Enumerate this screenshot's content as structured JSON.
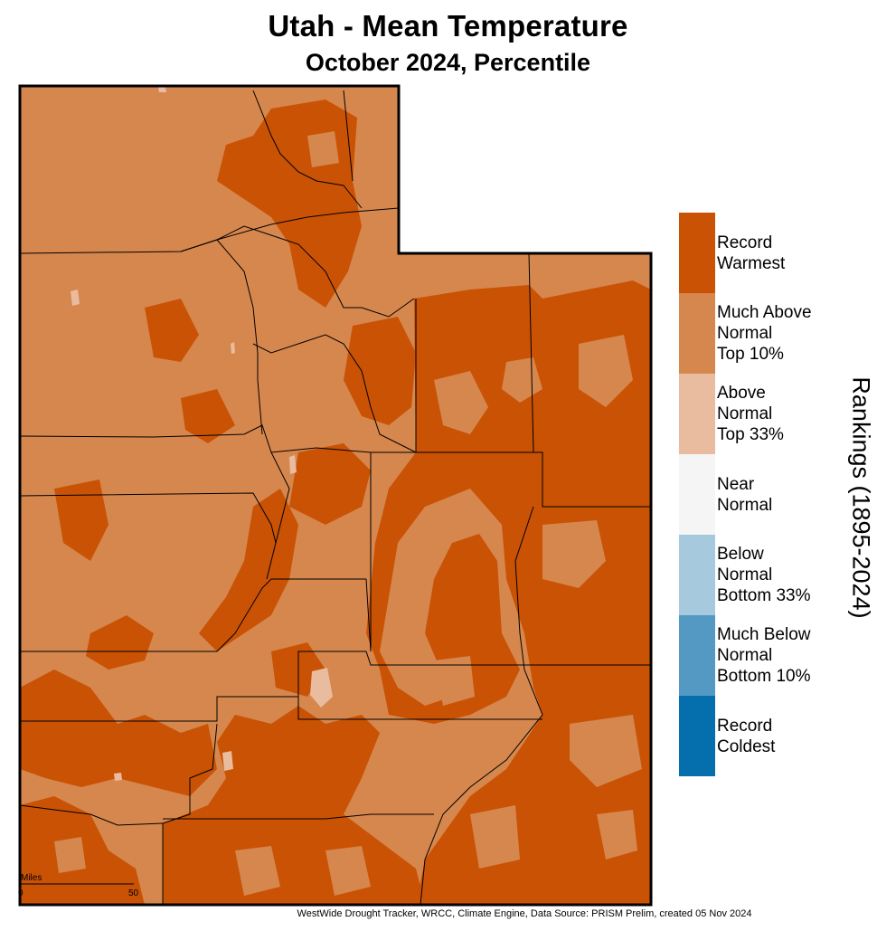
{
  "title": "Utah - Mean Temperature",
  "subtitle": "October 2024, Percentile",
  "colors": {
    "record_warmest": "#c95205",
    "much_above": "#d6874e",
    "above": "#e9bc9f",
    "near": "#f5f5f5",
    "below": "#a6c9de",
    "much_below": "#5499c4",
    "record_coldest": "#056fad",
    "border": "#000000"
  },
  "legend": {
    "title": "Rankings (1895-2024)",
    "items": [
      {
        "label": "Record\nWarmest",
        "color": "#c95205"
      },
      {
        "label": "Much Above\nNormal\nTop 10%",
        "color": "#d6874e"
      },
      {
        "label": "Above\nNormal\nTop 33%",
        "color": "#e9bc9f"
      },
      {
        "label": "Near\nNormal",
        "color": "#f5f5f5"
      },
      {
        "label": "Below\nNormal\nBottom 33%",
        "color": "#a6c9de"
      },
      {
        "label": "Much Below\nNormal\nBottom 10%",
        "color": "#5499c4"
      },
      {
        "label": "Record\nColdest",
        "color": "#056fad"
      }
    ]
  },
  "scale_bar": {
    "unit": "Miles",
    "start": "0",
    "end": "50"
  },
  "source": "WestWide Drought Tracker, WRCC, Climate Engine, Data Source: PRISM Prelim, created 05 Nov 2024"
}
